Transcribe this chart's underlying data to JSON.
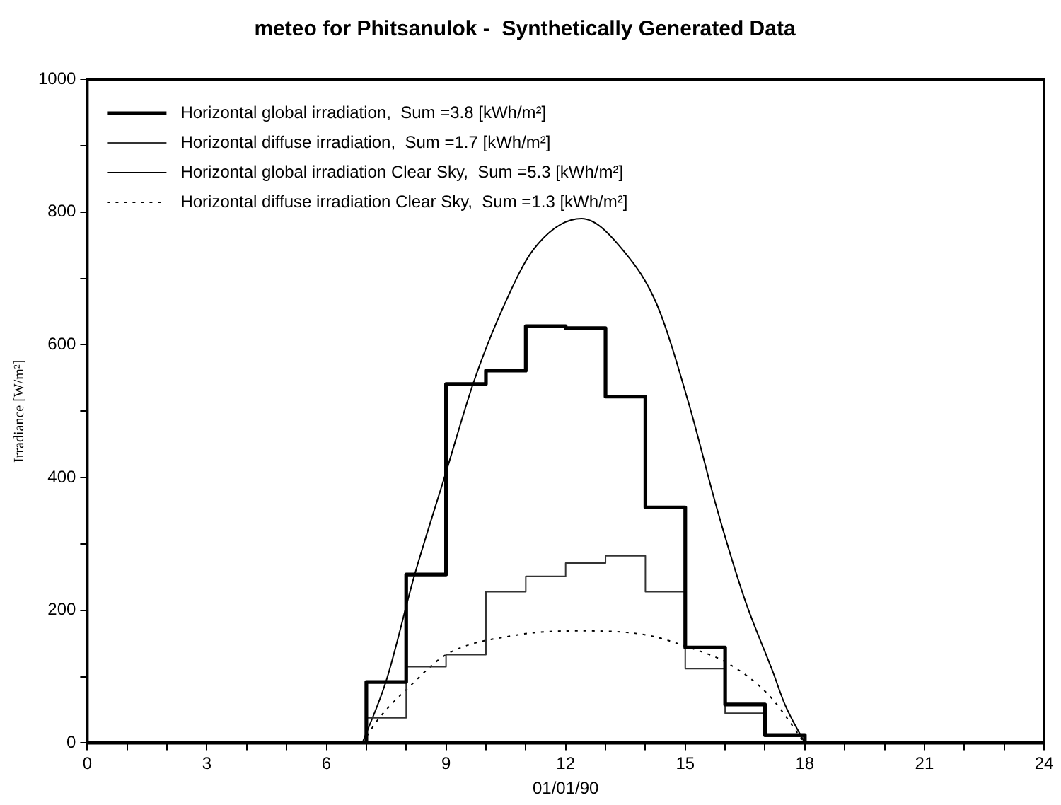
{
  "chart_data": {
    "type": "line",
    "title": "meteo for Phitsanulok -  Synthetically Generated Data",
    "xlabel": "01/01/90",
    "ylabel": "Irradiance [W/m²]",
    "xlim": [
      0,
      24
    ],
    "xticks": [
      0,
      {
        "value": 1,
        "label": null
      },
      {
        "value": 2,
        "label": null
      },
      3,
      {
        "value": 4,
        "label": null
      },
      {
        "value": 5,
        "label": null
      },
      6,
      {
        "value": 7,
        "label": null
      },
      {
        "value": 8,
        "label": null
      },
      9,
      {
        "value": 10,
        "label": null
      },
      {
        "value": 11,
        "label": null
      },
      12,
      {
        "value": 13,
        "label": null
      },
      {
        "value": 14,
        "label": null
      },
      15,
      {
        "value": 16,
        "label": null
      },
      {
        "value": 17,
        "label": null
      },
      18,
      {
        "value": 19,
        "label": null
      },
      {
        "value": 20,
        "label": null
      },
      21,
      {
        "value": 22,
        "label": null
      },
      {
        "value": 23,
        "label": null
      },
      24
    ],
    "ylim": [
      0,
      1000
    ],
    "yticks": [
      0,
      {
        "value": 100,
        "label": null
      },
      200,
      {
        "value": 300,
        "label": null
      },
      400,
      {
        "value": 500,
        "label": null
      },
      600,
      {
        "value": 700,
        "label": null
      },
      800,
      {
        "value": 900,
        "label": null
      },
      1000
    ],
    "grid": false,
    "legend": "top left",
    "marker": "none",
    "series": [
      {
        "name": "Horizontal global irradiation,  Sum =3.8 [kWh/m²]",
        "type": "step",
        "color": "#000000",
        "line_style": "solid",
        "x": [
          7,
          7,
          8,
          9,
          10,
          11,
          12,
          13,
          14,
          15,
          16,
          17,
          18
        ],
        "values": [
          0,
          92,
          254,
          541,
          561,
          628,
          625,
          522,
          355,
          144,
          58,
          12,
          0
        ]
      },
      {
        "name": "Horizontal diffuse irradiation,  Sum =1.7 [kWh/m²]",
        "type": "step",
        "color": "#333333",
        "line_style": "solid",
        "x": [
          7,
          7,
          8,
          9,
          10,
          11,
          12,
          13,
          14,
          15,
          16,
          17,
          18
        ],
        "values": [
          0,
          38,
          115,
          133,
          228,
          251,
          271,
          282,
          228,
          112,
          45,
          10,
          0
        ]
      },
      {
        "name": "Horizontal global irradiation Clear Sky,  Sum =5.3 [kWh/m²]",
        "type": "line",
        "color": "#000000",
        "line_style": "solid",
        "x": [
          6.9,
          7.5,
          8.2,
          9.0,
          9.7,
          10.4,
          11.2,
          12.4,
          13.5,
          14.3,
          15.1,
          15.8,
          16.5,
          17.2,
          17.5,
          18.0
        ],
        "values": [
          0,
          94,
          251,
          408,
          545,
          652,
          744,
          790,
          738,
          659,
          509,
          352,
          215,
          107,
          58,
          0
        ]
      },
      {
        "name": "Horizontal diffuse irradiation Clear Sky,  Sum =1.3 [kWh/m²]",
        "type": "line",
        "color": "#000000",
        "line_style": "dotted",
        "x": [
          6.9,
          7.3,
          8.1,
          9.0,
          10.7,
          12.3,
          14.0,
          15.1,
          16.1,
          17.1,
          18.0
        ],
        "values": [
          0,
          36,
          86,
          133,
          162,
          169,
          163,
          144,
          119,
          72,
          0
        ]
      }
    ]
  }
}
